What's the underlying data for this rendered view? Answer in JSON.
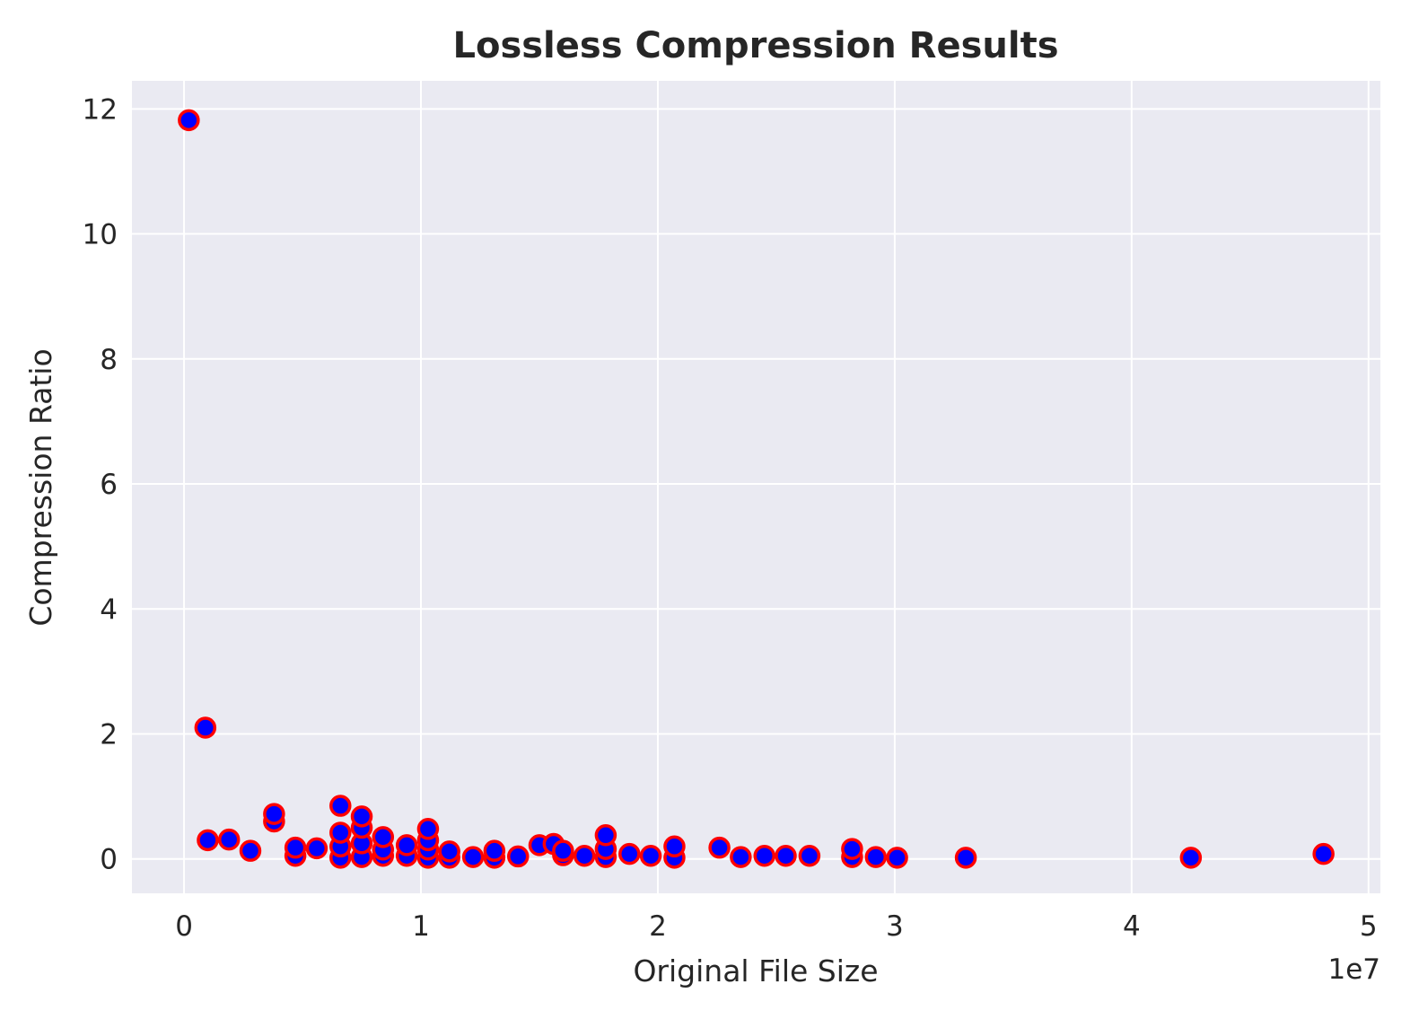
{
  "chart_data": {
    "type": "scatter",
    "title": "Lossless Compression Results",
    "xlabel": "Original File Size",
    "ylabel": "Compression Ratio",
    "x_offset_label": "1e7",
    "xlim": [
      -0.22,
      5.05
    ],
    "ylim": [
      -0.55,
      12.45
    ],
    "x_scale_note": "x values in units of 1e7",
    "xticks": [
      0,
      1,
      2,
      3,
      4,
      5
    ],
    "yticks": [
      0,
      2,
      4,
      6,
      8,
      10,
      12
    ],
    "grid": true,
    "colors": {
      "background": "#eaeaf2",
      "grid": "#ffffff",
      "marker_fill": "#0000ff",
      "marker_edge": "#ff0000"
    },
    "points": [
      [
        0.02,
        11.82
      ],
      [
        0.09,
        2.1
      ],
      [
        0.1,
        0.3
      ],
      [
        0.19,
        0.31
      ],
      [
        0.28,
        0.13
      ],
      [
        0.38,
        0.6
      ],
      [
        0.38,
        0.72
      ],
      [
        0.47,
        0.05
      ],
      [
        0.47,
        0.18
      ],
      [
        0.56,
        0.17
      ],
      [
        0.66,
        0.02
      ],
      [
        0.66,
        0.2
      ],
      [
        0.66,
        0.42
      ],
      [
        0.66,
        0.85
      ],
      [
        0.75,
        0.03
      ],
      [
        0.75,
        0.25
      ],
      [
        0.75,
        0.5
      ],
      [
        0.75,
        0.68
      ],
      [
        0.84,
        0.05
      ],
      [
        0.84,
        0.15
      ],
      [
        0.84,
        0.35
      ],
      [
        0.94,
        0.05
      ],
      [
        0.94,
        0.22
      ],
      [
        1.03,
        0.02
      ],
      [
        1.03,
        0.15
      ],
      [
        1.03,
        0.3
      ],
      [
        1.03,
        0.48
      ],
      [
        1.12,
        0.02
      ],
      [
        1.12,
        0.12
      ],
      [
        1.22,
        0.03
      ],
      [
        1.31,
        0.02
      ],
      [
        1.31,
        0.13
      ],
      [
        1.41,
        0.04
      ],
      [
        1.5,
        0.22
      ],
      [
        1.56,
        0.24
      ],
      [
        1.6,
        0.06
      ],
      [
        1.6,
        0.13
      ],
      [
        1.69,
        0.05
      ],
      [
        1.78,
        0.03
      ],
      [
        1.78,
        0.16
      ],
      [
        1.78,
        0.38
      ],
      [
        1.88,
        0.08
      ],
      [
        1.97,
        0.05
      ],
      [
        2.07,
        0.02
      ],
      [
        2.07,
        0.2
      ],
      [
        2.26,
        0.18
      ],
      [
        2.35,
        0.03
      ],
      [
        2.45,
        0.05
      ],
      [
        2.54,
        0.05
      ],
      [
        2.64,
        0.05
      ],
      [
        2.82,
        0.03
      ],
      [
        2.82,
        0.16
      ],
      [
        2.92,
        0.03
      ],
      [
        3.01,
        0.02
      ],
      [
        3.3,
        0.02
      ],
      [
        4.25,
        0.02
      ],
      [
        4.81,
        0.08
      ]
    ]
  }
}
